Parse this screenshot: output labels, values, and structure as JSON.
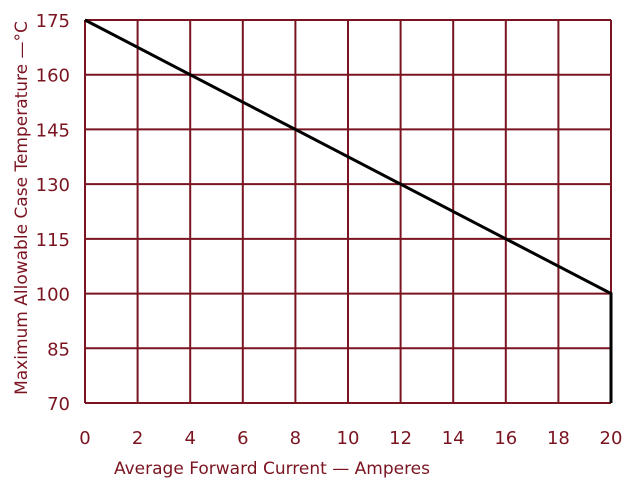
{
  "chart_data": {
    "type": "line",
    "title": "",
    "xlabel": "Average Forward Current — Amperes",
    "ylabel": "Maximum Allowable Case Temperature —°C",
    "xlim": [
      0,
      20
    ],
    "ylim": [
      70,
      175
    ],
    "x_ticks": [
      0,
      2,
      4,
      6,
      8,
      10,
      12,
      14,
      16,
      18,
      20
    ],
    "y_ticks": [
      70,
      85,
      100,
      115,
      130,
      145,
      160,
      175
    ],
    "grid": true,
    "series": [
      {
        "x": [
          0,
          20,
          20
        ],
        "y": [
          175,
          100,
          70
        ]
      }
    ],
    "colors": {
      "grid": "#7a1420",
      "text": "#7a1420",
      "line": "#000000"
    }
  }
}
